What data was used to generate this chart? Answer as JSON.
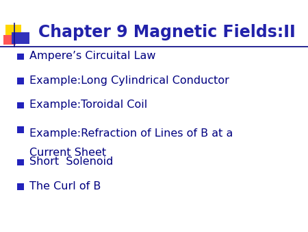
{
  "title": "Chapter 9 Magnetic Fields:II",
  "title_color": "#2222AA",
  "title_fontsize": 17,
  "background_color": "#FFFFFF",
  "bullet_color": "#000080",
  "bullet_marker_color": "#2222BB",
  "bullet_items": [
    "Ampere’s Circuital Law",
    "Example:Long Cylindrical Conductor",
    "Example:Toroidal Coil",
    "Example:Refraction of Lines of B at a\nCurrent Sheet",
    "Short  Solenoid",
    "The Curl of B"
  ],
  "bullet_fontsize": 11.5,
  "line_color": "#000080",
  "fig_width": 4.5,
  "fig_height": 3.38,
  "fig_dpi": 100
}
